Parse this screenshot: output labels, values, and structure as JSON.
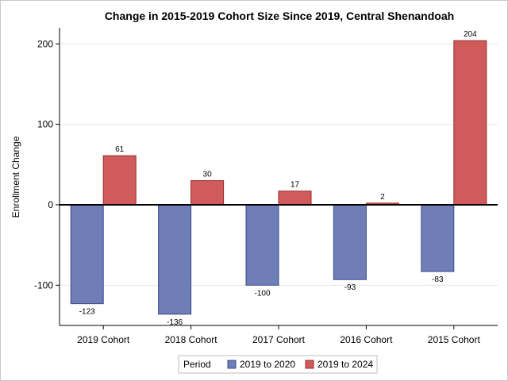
{
  "chart_data": {
    "type": "bar",
    "title": "Change in 2015-2019 Cohort Size Since 2019, Central Shenandoah",
    "xlabel": "",
    "ylabel": "Enrollment Change",
    "categories": [
      "2019 Cohort",
      "2018 Cohort",
      "2017 Cohort",
      "2016 Cohort",
      "2015 Cohort"
    ],
    "series": [
      {
        "name": "2019 to 2020",
        "values": [
          -123,
          -136,
          -100,
          -93,
          -83
        ],
        "color": "#6f7eb7",
        "stroke": "#3a4a8c"
      },
      {
        "name": "2019 to 2024",
        "values": [
          61,
          30,
          17,
          2,
          204
        ],
        "color": "#d05b5b",
        "stroke": "#9a2a2a"
      }
    ],
    "ylim": [
      -150,
      220
    ],
    "yticks": [
      -100,
      0,
      100,
      200
    ],
    "grid": true,
    "legend": {
      "title": "Period",
      "placement": "bottom"
    }
  }
}
